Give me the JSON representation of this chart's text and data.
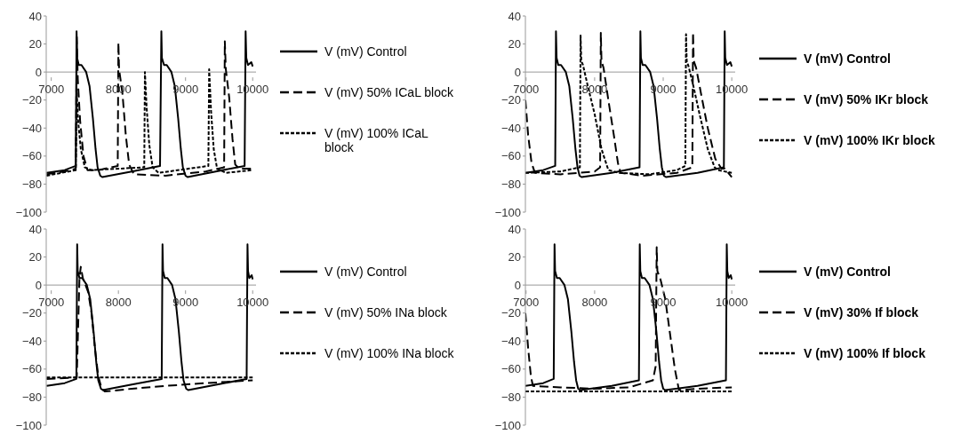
{
  "chart_data": [
    {
      "type": "line",
      "xlim": [
        6925,
        10050
      ],
      "xticks": [
        7000,
        8000,
        9000,
        10000
      ],
      "ylim": [
        -100,
        40
      ],
      "yticks": [
        -100,
        -80,
        -60,
        -40,
        -20,
        0,
        20,
        40
      ],
      "grid": false,
      "legend": "right",
      "marker": "none",
      "series": [
        {
          "name": "V (mV) Control",
          "color": "#000000",
          "line_style": "solid",
          "x": [
            6930,
            7200,
            7365,
            7377,
            7385,
            7410,
            7450,
            7520,
            7570,
            7620,
            7660,
            7690,
            7730,
            7760,
            8200,
            8620,
            8640,
            8648,
            8680,
            8720,
            8790,
            8840,
            8890,
            8930,
            8960,
            9000,
            9030,
            9450,
            9880,
            9895,
            9905,
            9930,
            9980,
            10000
          ],
          "values": [
            -72,
            -70,
            -67,
            29,
            10,
            5,
            5,
            0,
            -10,
            -33,
            -55,
            -68,
            -74,
            -75,
            -71,
            -67,
            29,
            10,
            5,
            5,
            0,
            -10,
            -33,
            -55,
            -68,
            -74,
            -75,
            -71,
            -67,
            29,
            10,
            5,
            7,
            4
          ]
        },
        {
          "name": "V (mV) 50% ICaL block",
          "color": "#000000",
          "line_style": "dashed",
          "x": [
            6930,
            7200,
            7365,
            7380,
            7395,
            7430,
            7480,
            7540,
            7700,
            7990,
            8000,
            8010,
            8060,
            8110,
            8160,
            8230,
            8700,
            9300,
            9575,
            9585,
            9600,
            9650,
            9700,
            9740,
            9800,
            10000
          ],
          "values": [
            -73,
            -71,
            -69,
            25,
            -5,
            -35,
            -60,
            -70,
            -70,
            -67,
            21,
            2,
            -15,
            -45,
            -66,
            -73,
            -74,
            -71,
            -68,
            22,
            2,
            -18,
            -48,
            -66,
            -69,
            -69
          ]
        },
        {
          "name": "V (mV) 100% ICaL block",
          "color": "#000000",
          "line_style": "dotted",
          "x": [
            6930,
            7365,
            7380,
            7400,
            7440,
            7500,
            7600,
            8385,
            8395,
            8420,
            8460,
            8510,
            8600,
            9340,
            9352,
            9380,
            9420,
            9470,
            9600,
            10000
          ],
          "values": [
            -74,
            -70,
            -15,
            -35,
            -55,
            -68,
            -70,
            -68,
            0,
            -25,
            -52,
            -68,
            -72,
            -67,
            2,
            -28,
            -55,
            -69,
            -72,
            -70
          ]
        }
      ]
    },
    {
      "type": "line",
      "xlim": [
        6990,
        10050
      ],
      "xticks": [
        7000,
        8000,
        9000,
        10000
      ],
      "ylim": [
        -100,
        40
      ],
      "yticks": [
        -100,
        -80,
        -60,
        -40,
        -20,
        0,
        20,
        40
      ],
      "grid": false,
      "legend": "right",
      "marker": "none",
      "series": [
        {
          "name": "V (mV) Control",
          "color": "#000000",
          "line_style": "solid",
          "x": [
            6990,
            7250,
            7425,
            7436,
            7445,
            7470,
            7510,
            7580,
            7630,
            7680,
            7720,
            7750,
            7780,
            7810,
            8250,
            8655,
            8667,
            8675,
            8700,
            8740,
            8810,
            8860,
            8910,
            8950,
            8980,
            9010,
            9040,
            9500,
            9885,
            9897,
            9905,
            9930,
            9980,
            10000
          ],
          "values": [
            -72,
            -70,
            -67,
            29,
            10,
            5,
            5,
            0,
            -10,
            -33,
            -55,
            -68,
            -74,
            -75,
            -72,
            -68,
            29,
            10,
            5,
            5,
            0,
            -10,
            -33,
            -55,
            -68,
            -74,
            -75,
            -72,
            -68,
            29,
            10,
            5,
            7,
            4
          ]
        },
        {
          "name": "V (mV) 50% IKr block",
          "color": "#000000",
          "line_style": "dashed",
          "x": [
            6990,
            7030,
            7080,
            7130,
            7500,
            8000,
            8080,
            8090,
            8100,
            8130,
            8200,
            8280,
            8340,
            8380,
            8700,
            9200,
            9425,
            9435,
            9445,
            9480,
            9550,
            9650,
            9760,
            9850,
            9900,
            10000
          ],
          "values": [
            -20,
            -45,
            -65,
            -72,
            -73,
            -71,
            -68,
            28,
            8,
            3,
            -20,
            -45,
            -65,
            -72,
            -74,
            -72,
            -68,
            28,
            8,
            3,
            -15,
            -40,
            -62,
            -69,
            -69,
            -75
          ]
        },
        {
          "name": "V (mV) 100% IKr block",
          "color": "#000000",
          "line_style": "dotted",
          "x": [
            6990,
            7500,
            7785,
            7795,
            7805,
            7830,
            7900,
            8000,
            8100,
            8200,
            8360,
            8800,
            9200,
            9323,
            9333,
            9343,
            9370,
            9440,
            9530,
            9650,
            9750,
            9800,
            10000
          ],
          "values": [
            -72,
            -71,
            -68,
            26,
            8,
            5,
            -10,
            -30,
            -55,
            -70,
            -72,
            -73,
            -70,
            -67,
            27,
            8,
            4,
            -10,
            -30,
            -55,
            -68,
            -70,
            -72
          ]
        }
      ]
    },
    {
      "type": "line",
      "xlim": [
        6925,
        10050
      ],
      "xticks": [
        7000,
        8000,
        9000,
        10000
      ],
      "ylim": [
        -100,
        40
      ],
      "yticks": [
        -100,
        -80,
        -60,
        -40,
        -20,
        0,
        20,
        40
      ],
      "grid": false,
      "legend": "right",
      "marker": "none",
      "series": [
        {
          "name": "V (mV) Control",
          "color": "#000000",
          "line_style": "solid",
          "x": [
            6930,
            7200,
            7374,
            7386,
            7394,
            7420,
            7460,
            7530,
            7580,
            7630,
            7670,
            7700,
            7740,
            7770,
            8200,
            8645,
            8657,
            8665,
            8690,
            8730,
            8800,
            8850,
            8900,
            8940,
            8970,
            9010,
            9040,
            9470,
            9910,
            9923,
            9931,
            9950,
            9985,
            10000
          ],
          "values": [
            -72,
            -70,
            -67,
            29,
            10,
            5,
            5,
            0,
            -10,
            -33,
            -55,
            -68,
            -74,
            -75,
            -71,
            -67,
            29,
            10,
            5,
            5,
            0,
            -10,
            -33,
            -55,
            -68,
            -74,
            -75,
            -71,
            -67,
            29,
            10,
            5,
            7,
            4
          ]
        },
        {
          "name": "V (mV) 50% INa block",
          "color": "#000000",
          "line_style": "dashed",
          "x": [
            6930,
            7380,
            7400,
            7420,
            7440,
            7470,
            7550,
            7600,
            7650,
            7700,
            7750,
            7800,
            8200,
            8700,
            9300,
            10000
          ],
          "values": [
            -67,
            -66,
            -30,
            5,
            13,
            5,
            -5,
            -20,
            -45,
            -65,
            -74,
            -76,
            -74,
            -72,
            -70,
            -68
          ]
        },
        {
          "name": "V (mV) 100% INa block",
          "color": "#000000",
          "line_style": "dotted",
          "x": [
            6930,
            10000
          ],
          "values": [
            -66,
            -66
          ]
        }
      ]
    },
    {
      "type": "line",
      "xlim": [
        6990,
        10050
      ],
      "xticks": [
        7000,
        8000,
        9000,
        10000
      ],
      "ylim": [
        -100,
        40
      ],
      "yticks": [
        -100,
        -80,
        -60,
        -40,
        -20,
        0,
        20,
        40
      ],
      "grid": false,
      "legend": "right",
      "marker": "none",
      "series": [
        {
          "name": "V (mV) Control",
          "color": "#000000",
          "line_style": "solid",
          "x": [
            6990,
            7250,
            7403,
            7415,
            7423,
            7450,
            7490,
            7560,
            7610,
            7660,
            7700,
            7730,
            7760,
            7790,
            8250,
            8646,
            8658,
            8666,
            8690,
            8730,
            8800,
            8850,
            8900,
            8940,
            8970,
            9000,
            9030,
            9500,
            9915,
            9927,
            9935,
            9955,
            9985,
            10000
          ],
          "values": [
            -72,
            -70,
            -67,
            29,
            10,
            5,
            5,
            0,
            -10,
            -33,
            -55,
            -68,
            -74,
            -75,
            -72,
            -68,
            29,
            10,
            5,
            5,
            0,
            -10,
            -33,
            -55,
            -68,
            -74,
            -75,
            -72,
            -68,
            29,
            10,
            5,
            7,
            4
          ]
        },
        {
          "name": "V (mV) 30% If block",
          "color": "#000000",
          "line_style": "dashed",
          "x": [
            6990,
            7030,
            7070,
            7100,
            7500,
            8000,
            8500,
            8850,
            8890,
            8905,
            8915,
            8960,
            9030,
            9100,
            9170,
            9230,
            9500,
            10000
          ],
          "values": [
            -20,
            -45,
            -65,
            -72,
            -73,
            -74,
            -73,
            -68,
            -58,
            27,
            10,
            4,
            -10,
            -35,
            -60,
            -75,
            -74,
            -73
          ]
        },
        {
          "name": "V (mV) 100% If block",
          "color": "#000000",
          "line_style": "dotted",
          "x": [
            6990,
            10000
          ],
          "values": [
            -76,
            -76
          ]
        }
      ]
    }
  ]
}
